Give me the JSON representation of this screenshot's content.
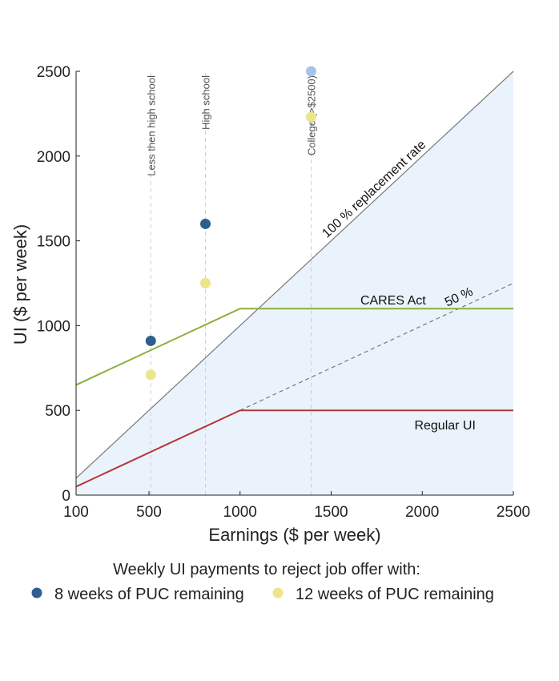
{
  "chart_data": {
    "type": "line",
    "xlabel": "Earnings ($ per week)",
    "ylabel": "UI ($ per week)",
    "xlim": [
      100,
      2500
    ],
    "ylim": [
      0,
      2500
    ],
    "x_ticks": [
      100,
      500,
      1000,
      1500,
      2000,
      2500
    ],
    "y_ticks": [
      0,
      500,
      1000,
      1500,
      2000,
      2500
    ],
    "grid": false,
    "shaded_region": {
      "description_hidden": true,
      "color": "#eaf3fc",
      "points": [
        [
          100,
          0
        ],
        [
          100,
          100
        ],
        [
          2500,
          2500
        ],
        [
          2500,
          0
        ]
      ]
    },
    "lines": [
      {
        "label": "100 % replacement rate",
        "color": "#777777",
        "dash": "solid",
        "points": [
          [
            100,
            100
          ],
          [
            2500,
            2500
          ]
        ]
      },
      {
        "label": "50 %",
        "color": "#777777",
        "dash": "dashed",
        "points": [
          [
            1000,
            500
          ],
          [
            2500,
            1250
          ]
        ]
      },
      {
        "label": "CARES Act",
        "color": "#8aaf3a",
        "dash": "solid",
        "points": [
          [
            100,
            650
          ],
          [
            1000,
            1100
          ],
          [
            2500,
            1100
          ]
        ]
      },
      {
        "label": "Regular UI",
        "color": "#b5363b",
        "dash": "solid",
        "points": [
          [
            100,
            50
          ],
          [
            1000,
            500
          ],
          [
            2500,
            500
          ]
        ]
      }
    ],
    "education_lines": [
      {
        "label": "Less then high school",
        "x": 510
      },
      {
        "label": "High school",
        "x": 810
      },
      {
        "label": "College (>$2500)",
        "x": 1390
      }
    ],
    "series": [
      {
        "name": "8 weeks of PUC remaining",
        "color": "#2e5e8c",
        "points": [
          [
            510,
            910
          ],
          [
            810,
            1600
          ]
        ]
      },
      {
        "name": "12 weeks of PUC remaining",
        "color": "#ece58a",
        "points": [
          [
            510,
            710
          ],
          [
            810,
            1250
          ],
          [
            1390,
            2230
          ]
        ]
      },
      {
        "name": "",
        "color": "#a6c4e6",
        "points": [
          [
            1390,
            2500
          ]
        ]
      }
    ],
    "legend": {
      "title": "Weekly UI payments to reject job offer with:",
      "placement": "bottom",
      "entries": [
        {
          "label": "8 weeks of PUC remaining",
          "color": "#2e5e8c"
        },
        {
          "label": "12 weeks of PUC remaining",
          "color": "#ece58a"
        }
      ]
    }
  }
}
